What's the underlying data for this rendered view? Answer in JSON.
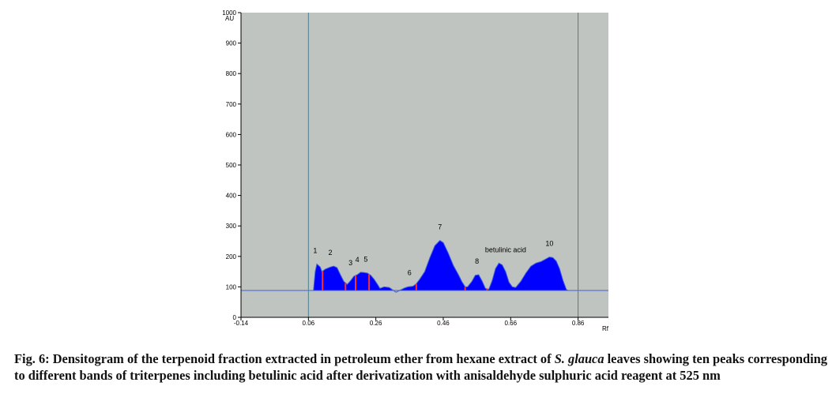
{
  "chart_data": {
    "type": "area",
    "xlabel": "Rf",
    "ylabel": "AU",
    "xlim": [
      -0.14,
      0.95
    ],
    "ylim": [
      0,
      1000
    ],
    "x_ticks": [
      -0.14,
      0.06,
      0.26,
      0.46,
      0.66,
      0.86
    ],
    "x_tick_labels": [
      "-0.14",
      "0.06",
      "0.26",
      "0.46",
      "0.66",
      "0.86"
    ],
    "y_ticks": [
      0,
      100,
      200,
      300,
      400,
      500,
      600,
      700,
      800,
      900,
      1000
    ],
    "y_tick_labels": [
      "0",
      "100",
      "200",
      "300",
      "400",
      "500",
      "600",
      "700",
      "800",
      "900",
      "1000"
    ],
    "baseline": 88,
    "vertical_markers": [
      0.06,
      0.86
    ],
    "grid": false,
    "colors": {
      "plot_bg": "#c0c4c0",
      "fill": "#0000ff",
      "line": "#4060d8",
      "separator": "#ff3030",
      "marker": "#4a7f8f"
    },
    "trace": [
      [
        -0.14,
        88
      ],
      [
        0.06,
        88
      ],
      [
        0.075,
        88
      ],
      [
        0.08,
        150
      ],
      [
        0.085,
        175
      ],
      [
        0.095,
        165
      ],
      [
        0.1,
        150
      ],
      [
        0.11,
        158
      ],
      [
        0.125,
        165
      ],
      [
        0.135,
        168
      ],
      [
        0.145,
        163
      ],
      [
        0.155,
        140
      ],
      [
        0.165,
        118
      ],
      [
        0.175,
        108
      ],
      [
        0.185,
        120
      ],
      [
        0.195,
        135
      ],
      [
        0.205,
        140
      ],
      [
        0.215,
        148
      ],
      [
        0.225,
        147
      ],
      [
        0.235,
        145
      ],
      [
        0.245,
        138
      ],
      [
        0.255,
        125
      ],
      [
        0.265,
        108
      ],
      [
        0.272,
        95
      ],
      [
        0.285,
        100
      ],
      [
        0.3,
        98
      ],
      [
        0.31,
        90
      ],
      [
        0.32,
        82
      ],
      [
        0.33,
        88
      ],
      [
        0.345,
        96
      ],
      [
        0.355,
        100
      ],
      [
        0.37,
        102
      ],
      [
        0.38,
        110
      ],
      [
        0.39,
        125
      ],
      [
        0.405,
        150
      ],
      [
        0.42,
        195
      ],
      [
        0.435,
        235
      ],
      [
        0.45,
        252
      ],
      [
        0.46,
        245
      ],
      [
        0.475,
        210
      ],
      [
        0.49,
        170
      ],
      [
        0.505,
        140
      ],
      [
        0.515,
        118
      ],
      [
        0.525,
        100
      ],
      [
        0.532,
        100
      ],
      [
        0.545,
        118
      ],
      [
        0.555,
        138
      ],
      [
        0.565,
        140
      ],
      [
        0.575,
        120
      ],
      [
        0.585,
        95
      ],
      [
        0.595,
        92
      ],
      [
        0.605,
        120
      ],
      [
        0.615,
        160
      ],
      [
        0.625,
        178
      ],
      [
        0.635,
        172
      ],
      [
        0.645,
        150
      ],
      [
        0.655,
        115
      ],
      [
        0.665,
        100
      ],
      [
        0.675,
        98
      ],
      [
        0.69,
        118
      ],
      [
        0.705,
        145
      ],
      [
        0.72,
        168
      ],
      [
        0.735,
        178
      ],
      [
        0.75,
        183
      ],
      [
        0.765,
        192
      ],
      [
        0.775,
        198
      ],
      [
        0.785,
        196
      ],
      [
        0.795,
        185
      ],
      [
        0.805,
        160
      ],
      [
        0.815,
        122
      ],
      [
        0.825,
        92
      ],
      [
        0.83,
        88
      ],
      [
        0.86,
        88
      ],
      [
        0.95,
        88
      ]
    ],
    "peak_separators": [
      0.102,
      0.17,
      0.2,
      0.24,
      0.38,
      0.525,
      0.59
    ],
    "peaks": [
      {
        "label": "1",
        "x": 0.08,
        "y": 175
      },
      {
        "label": "2",
        "x": 0.125,
        "y": 168
      },
      {
        "label": "3",
        "x": 0.185,
        "y": 135
      },
      {
        "label": "4",
        "x": 0.205,
        "y": 145
      },
      {
        "label": "5",
        "x": 0.23,
        "y": 147
      },
      {
        "label": "6",
        "x": 0.36,
        "y": 102
      },
      {
        "label": "7",
        "x": 0.45,
        "y": 252
      },
      {
        "label": "8",
        "x": 0.56,
        "y": 140
      },
      {
        "label": "betulinic acid",
        "x": 0.645,
        "y": 178
      },
      {
        "label": "10",
        "x": 0.775,
        "y": 198
      }
    ]
  },
  "caption": {
    "prefix": "Fig. 6: Densitogram of the terpenoid fraction extracted in petroleum ether from hexane extract of ",
    "species": "S. glauca",
    "suffix": " leaves showing ten peaks corresponding to different bands of triterpenes including betulinic acid after derivatization with anisaldehyde sulphuric acid reagent at 525 nm"
  }
}
